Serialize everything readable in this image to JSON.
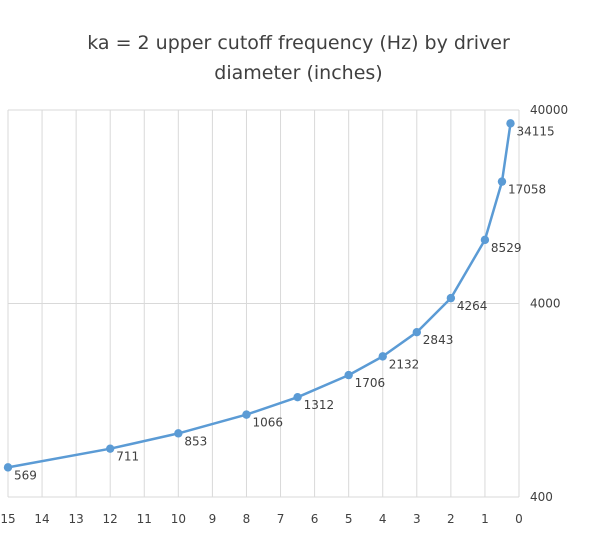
{
  "chart_data": {
    "type": "line",
    "title_line1": "ka = 2 upper cutoff frequency (Hz) by driver",
    "title_line2": "diameter (inches)",
    "xlabel": "",
    "ylabel": "",
    "x_reversed": true,
    "xlim": [
      0,
      15
    ],
    "x_ticks": [
      "15",
      "14",
      "13",
      "12",
      "11",
      "10",
      "9",
      "8",
      "7",
      "6",
      "5",
      "4",
      "3",
      "2",
      "1",
      "0"
    ],
    "y_scale": "log",
    "ylim": [
      400,
      40000
    ],
    "y_ticks": [
      "40000",
      "4000",
      "400"
    ],
    "grid": true,
    "series": [
      {
        "color": "#5B9BD5",
        "x": [
          15,
          12,
          10,
          8,
          6.5,
          5,
          4,
          3,
          2,
          1,
          0.5,
          0.25
        ],
        "values": [
          569,
          711,
          853,
          1066,
          1312,
          1706,
          2132,
          2843,
          4264,
          8529,
          17058,
          34115
        ],
        "labels": [
          "569",
          "711",
          "853",
          "1066",
          "1312",
          "1706",
          "2132",
          "2843",
          "4264",
          "8529",
          "17058",
          "34115"
        ]
      }
    ]
  }
}
